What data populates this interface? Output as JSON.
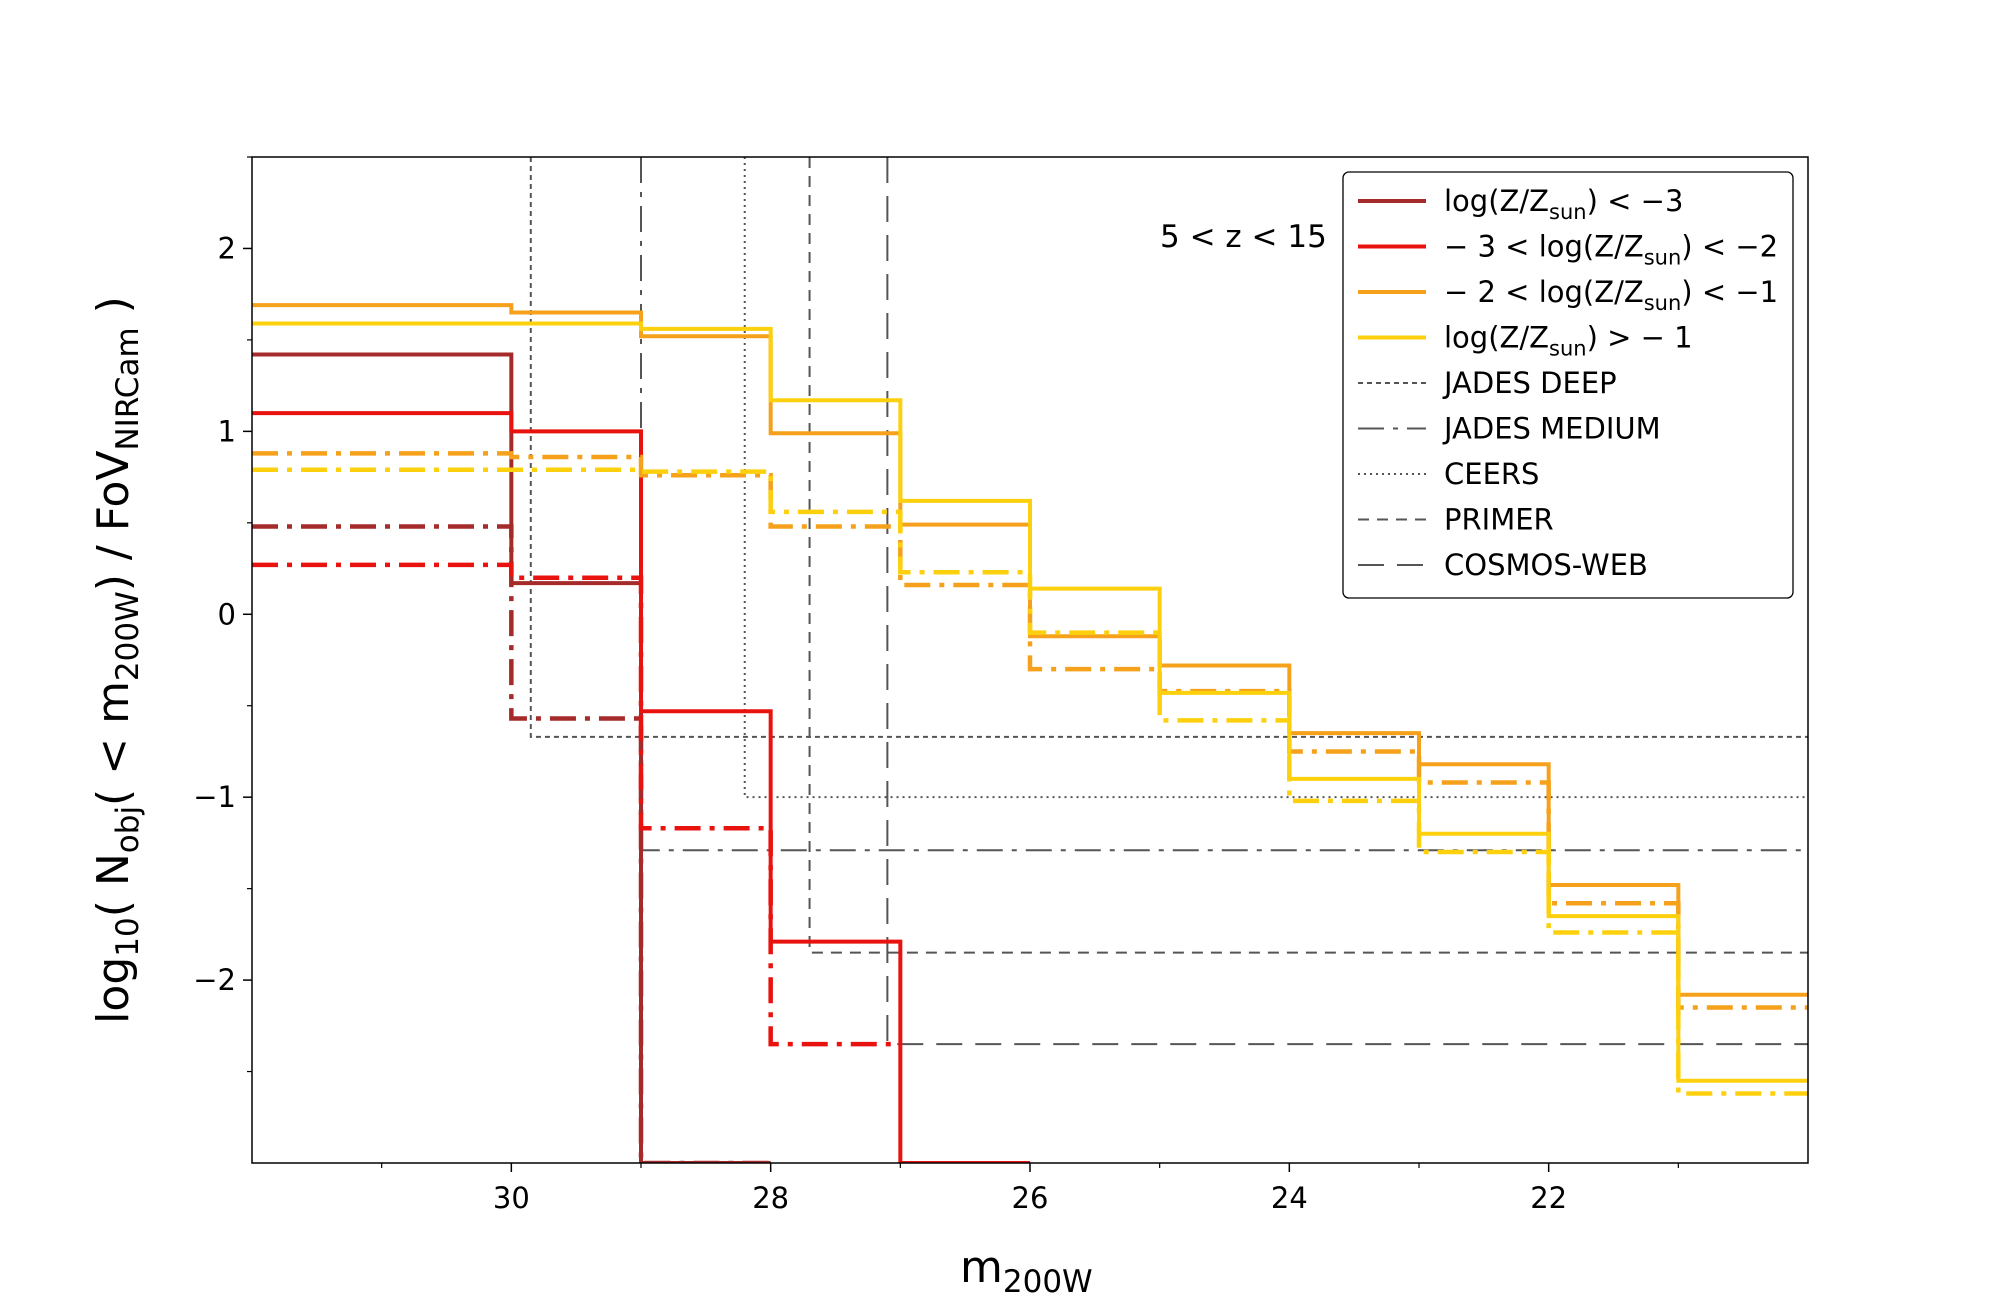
{
  "chart_data": {
    "type": "line",
    "step": true,
    "annotation": "5 < z < 15",
    "xlabel": {
      "base": "m",
      "sub": "200W"
    },
    "ylabel": {
      "prefix": "log",
      "prefix_sub": "10",
      "open": "( N",
      "n_sub": "obj",
      "mid": "( < m",
      "m_sub": "200W",
      "mid2": ") / FoV",
      "fov_sub": "NIRCam",
      "close": " )"
    },
    "xlim": [
      32,
      20
    ],
    "ylim": [
      -3.0,
      2.5
    ],
    "xticks": [
      30,
      28,
      26,
      24,
      22
    ],
    "yticks": [
      2,
      1,
      0,
      -1,
      -2
    ],
    "tick_labels": {
      "x": [
        "30",
        "28",
        "26",
        "24",
        "22"
      ],
      "y": [
        "2",
        "1",
        "0",
        "−1",
        "−2"
      ]
    },
    "bin_edges": [
      32,
      30,
      29,
      28,
      27,
      26,
      25,
      24,
      23,
      22,
      21,
      20
    ],
    "colors": {
      "dark_red": "#a52a2a",
      "red": "#e8130f",
      "orange": "#f5a11b",
      "gold": "#fdd00e",
      "grey": "#555555"
    },
    "series": [
      {
        "name": "log(Z/Zsun) < −3",
        "color": "#a52a2a",
        "style": "solid",
        "values": [
          1.42,
          0.17,
          -3.0
        ]
      },
      {
        "name": "log(Z/Zsun) < −3 (dash-dot)",
        "color": "#a52a2a",
        "style": "dashdot",
        "values": [
          0.48,
          -0.57,
          -3.0
        ]
      },
      {
        "name": "−3 < log(Z/Zsun) < −2",
        "color": "#e8130f",
        "style": "solid",
        "values": [
          1.1,
          1.0,
          -0.53,
          -1.79,
          -3.0
        ]
      },
      {
        "name": "−3 < log(Z/Zsun) < −2 (dash-dot)",
        "color": "#e8130f",
        "style": "dashdot",
        "values": [
          0.27,
          0.2,
          -1.17,
          -2.35
        ]
      },
      {
        "name": "−2 < log(Z/Zsun) < −1",
        "color": "#f5a11b",
        "style": "solid",
        "values": [
          1.69,
          1.65,
          1.52,
          0.99,
          0.49,
          -0.12,
          -0.28,
          -0.65,
          -0.82,
          -1.48,
          -2.08
        ]
      },
      {
        "name": "−2 < log(Z/Zsun) < −1 (dash-dot)",
        "color": "#f5a11b",
        "style": "dashdot",
        "values": [
          0.88,
          0.86,
          0.76,
          0.48,
          0.16,
          -0.3,
          -0.42,
          -0.75,
          -0.92,
          -1.58,
          -2.15
        ]
      },
      {
        "name": "log(Z/Zsun) > −1",
        "color": "#fdd00e",
        "style": "solid",
        "values": [
          1.59,
          1.59,
          1.56,
          1.17,
          0.62,
          0.14,
          -0.43,
          -0.9,
          -1.2,
          -1.65,
          -2.55
        ]
      },
      {
        "name": "log(Z/Zsun) > −1 (dash-dot)",
        "color": "#fdd00e",
        "style": "dashdot",
        "values": [
          0.79,
          0.79,
          0.78,
          0.56,
          0.23,
          -0.1,
          -0.58,
          -1.02,
          -1.3,
          -1.74,
          -2.62
        ]
      }
    ],
    "survey_limits": [
      {
        "name": "JADES DEEP",
        "style": "dotted_dense",
        "mag": 29.85,
        "y": -0.67
      },
      {
        "name": "JADES MEDIUM",
        "style": "dashdot",
        "mag": 29.0,
        "y": -1.29
      },
      {
        "name": "CEERS",
        "style": "dotted",
        "mag": 28.2,
        "y": -1.0
      },
      {
        "name": "PRIMER",
        "style": "dashed_short",
        "mag": 27.7,
        "y": -1.85
      },
      {
        "name": "COSMOS-WEB",
        "style": "dashed_long",
        "mag": 27.1,
        "y": -2.35
      }
    ],
    "legend": {
      "position": "top-right",
      "entries": [
        {
          "pre": "log(Z/Z",
          "sub": "sun",
          "post": ") < −3",
          "color": "#a52a2a",
          "style": "solid"
        },
        {
          "pre": "− 3 < log(Z/Z",
          "sub": "sun",
          "post": ") < −2",
          "color": "#e8130f",
          "style": "solid"
        },
        {
          "pre": "− 2 < log(Z/Z",
          "sub": "sun",
          "post": ") < −1",
          "color": "#f5a11b",
          "style": "solid"
        },
        {
          "pre": "log(Z/Z",
          "sub": "sun",
          "post": ") > − 1",
          "color": "#fdd00e",
          "style": "solid"
        },
        {
          "pre": "JADES DEEP",
          "sub": "",
          "post": "",
          "color": "#555555",
          "style": "dotted_dense"
        },
        {
          "pre": "JADES MEDIUM",
          "sub": "",
          "post": "",
          "color": "#555555",
          "style": "dashdot"
        },
        {
          "pre": "CEERS",
          "sub": "",
          "post": "",
          "color": "#555555",
          "style": "dotted"
        },
        {
          "pre": "PRIMER",
          "sub": "",
          "post": "",
          "color": "#555555",
          "style": "dashed_short"
        },
        {
          "pre": "COSMOS-WEB",
          "sub": "",
          "post": "",
          "color": "#555555",
          "style": "dashed_long"
        }
      ]
    }
  }
}
